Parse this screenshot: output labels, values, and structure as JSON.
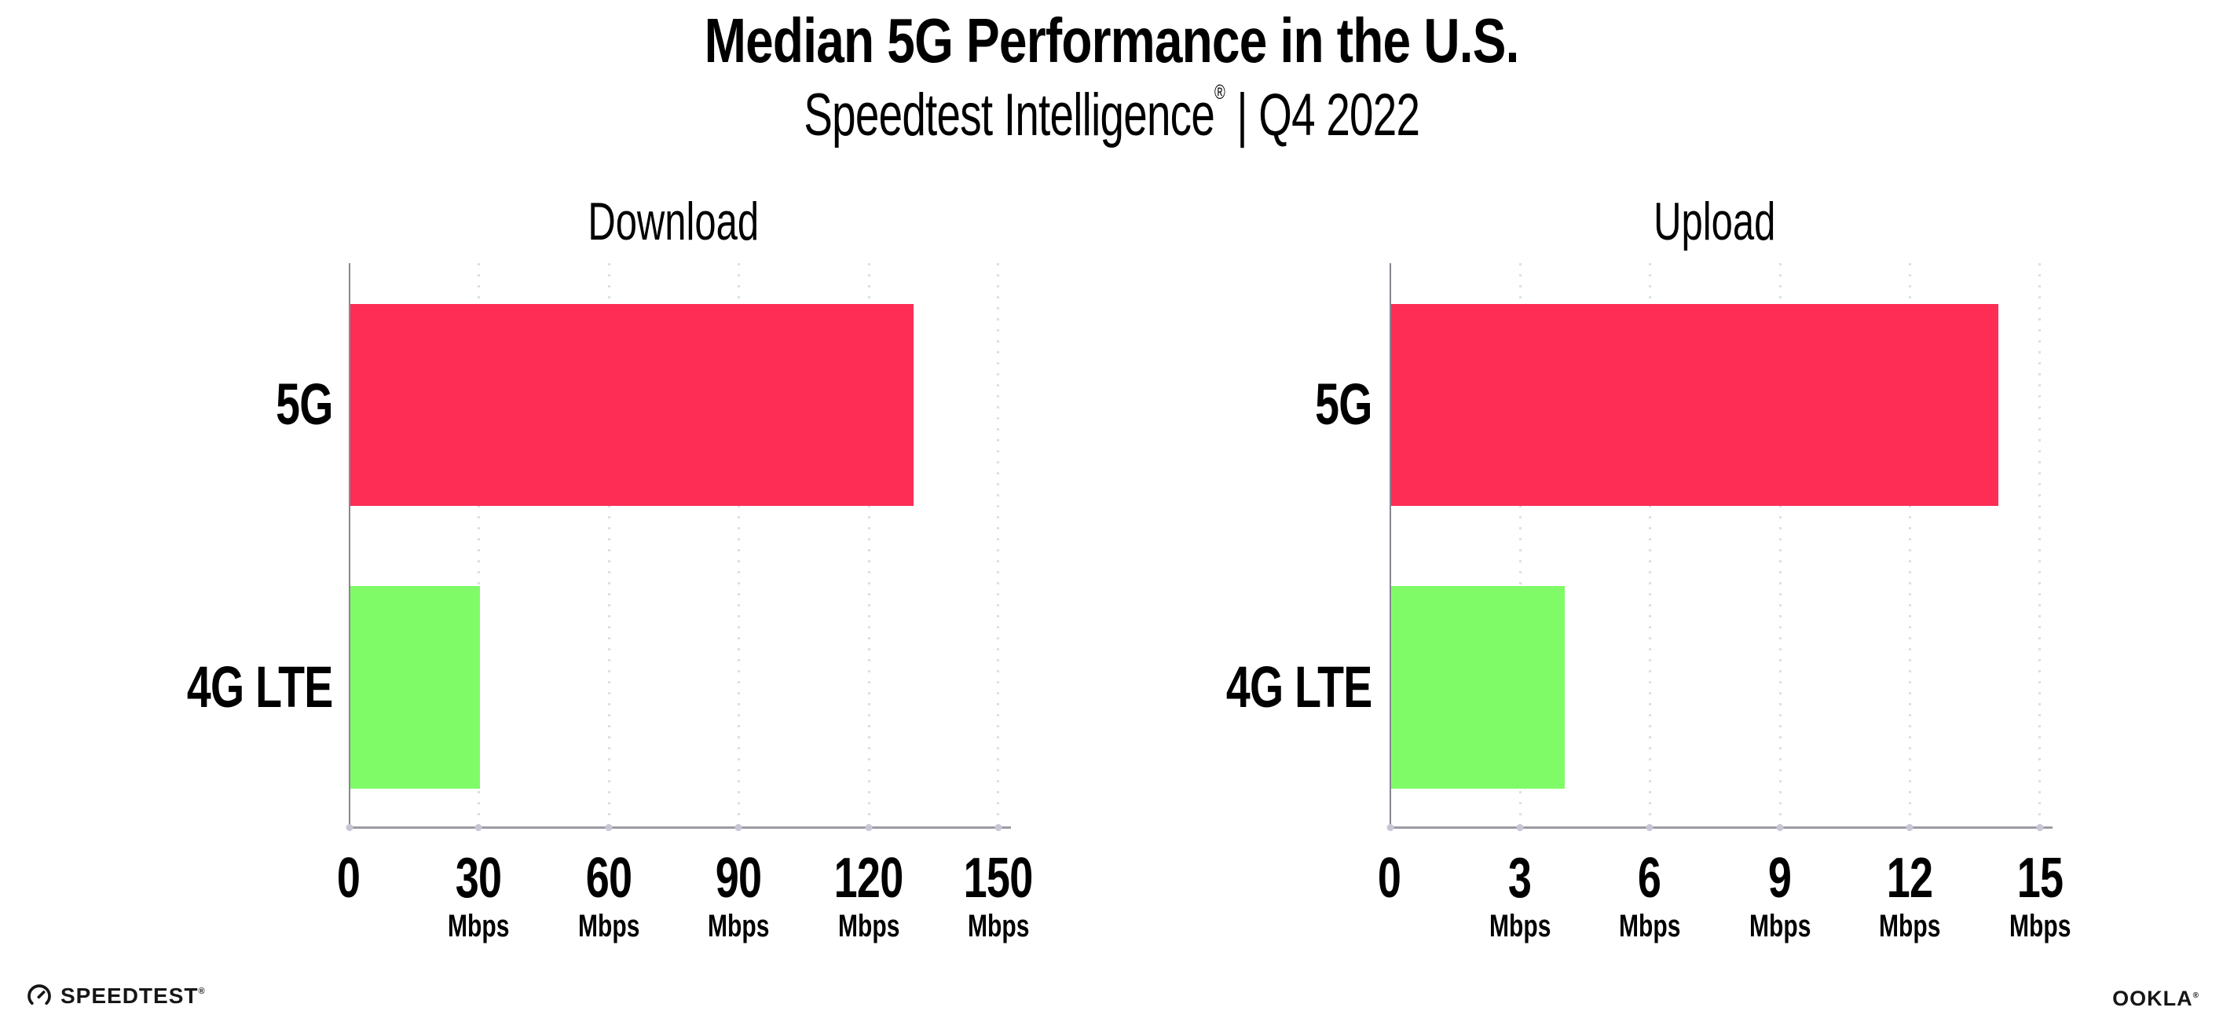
{
  "header": {
    "title": "Median 5G Performance in the U.S.",
    "subtitle_brand": "Speedtest Intelligence",
    "subtitle_reg": "®",
    "subtitle_period": "| Q4 2022"
  },
  "chart_data": [
    {
      "type": "bar",
      "orientation": "horizontal",
      "title": "Download",
      "categories": [
        "5G",
        "4G LTE"
      ],
      "values": [
        130,
        30
      ],
      "unit": "Mbps",
      "xlim": [
        0,
        150
      ],
      "xticks": [
        0,
        30,
        60,
        90,
        120,
        150
      ],
      "tick_units": [
        "",
        "Mbps",
        "Mbps",
        "Mbps",
        "Mbps",
        "Mbps"
      ],
      "bar_colors": [
        "#fd2d55",
        "#80fb68"
      ],
      "grid": "vertical-dotted",
      "legend": "none"
    },
    {
      "type": "bar",
      "orientation": "horizontal",
      "title": "Upload",
      "categories": [
        "5G",
        "4G LTE"
      ],
      "values": [
        14,
        4
      ],
      "unit": "Mbps",
      "xlim": [
        0,
        15
      ],
      "xticks": [
        0,
        3,
        6,
        9,
        12,
        15
      ],
      "tick_units": [
        "",
        "Mbps",
        "Mbps",
        "Mbps",
        "Mbps",
        "Mbps"
      ],
      "bar_colors": [
        "#fd2d55",
        "#80fb68"
      ],
      "grid": "vertical-dotted",
      "legend": "none"
    }
  ],
  "footer": {
    "speedtest_label": "SPEEDTEST",
    "speedtest_mark": "®",
    "ookla_label": "OOKLA",
    "ookla_mark": "®"
  },
  "colors": {
    "bar_5g": "#fd2d55",
    "bar_4g_lte": "#80fb68",
    "axis": "#9b9ba3",
    "grid_dots": "#dedee9",
    "text": "#000000"
  }
}
